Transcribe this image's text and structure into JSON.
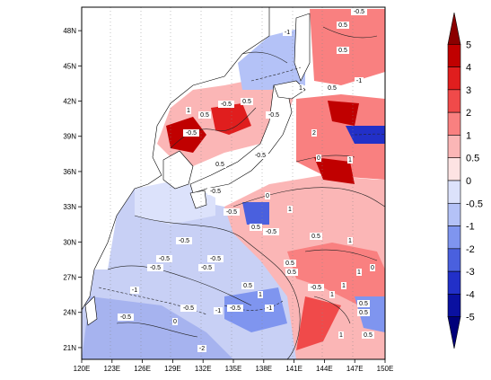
{
  "map": {
    "lon_ticks": [
      "120E",
      "123E",
      "126E",
      "129E",
      "132E",
      "135E",
      "138E",
      "141E",
      "144E",
      "147E",
      "150E"
    ],
    "lat_ticks": [
      "48N",
      "45N",
      "42N",
      "39N",
      "36N",
      "33N",
      "30N",
      "27N",
      "24N",
      "21N"
    ],
    "lon_values": [
      120,
      123,
      126,
      129,
      132,
      135,
      138,
      141,
      144,
      147,
      150
    ],
    "lat_values": [
      48,
      45,
      42,
      39,
      36,
      33,
      30,
      27,
      24,
      21
    ],
    "lon_range": [
      120,
      150
    ],
    "lat_range": [
      20,
      50
    ],
    "contour_labels": [
      "-1",
      "0.5",
      "-0.5",
      "0.5",
      "-1",
      "1",
      "0.5",
      "-0.5",
      "1",
      "0.5",
      "-0.5",
      "0.5",
      "2",
      "-0.5",
      "-0.5",
      "0.5",
      "1",
      "0",
      "-0.5",
      "0",
      "-0.5",
      "0.5",
      "1",
      "-0.5",
      "-0.5",
      "0.5",
      "-0.5",
      "1",
      "0.5",
      "0.5",
      "1",
      "-0.5",
      "-1",
      "-0.5",
      "0",
      "-0.5",
      "-1",
      "-2",
      "0.5",
      "1",
      "0",
      "-0.5",
      "1",
      "0.5",
      "1",
      "0.5",
      "-0.5",
      "-1",
      "-0.5",
      "-0.5",
      "0.5",
      "1"
    ]
  },
  "colorbar": {
    "labels": [
      "5",
      "4",
      "3",
      "2",
      "1",
      "0.5",
      "0",
      "-0.5",
      "-1",
      "-2",
      "-3",
      "-4",
      "-5"
    ],
    "colors": [
      "#8b0000",
      "#c00000",
      "#e01e1e",
      "#f04a4a",
      "#f98080",
      "#fbb6b6",
      "#fde3e3",
      "#dce2fb",
      "#b4c2f7",
      "#7f95ef",
      "#4a60de",
      "#2230c8",
      "#0a10a0",
      "#00007a"
    ]
  }
}
